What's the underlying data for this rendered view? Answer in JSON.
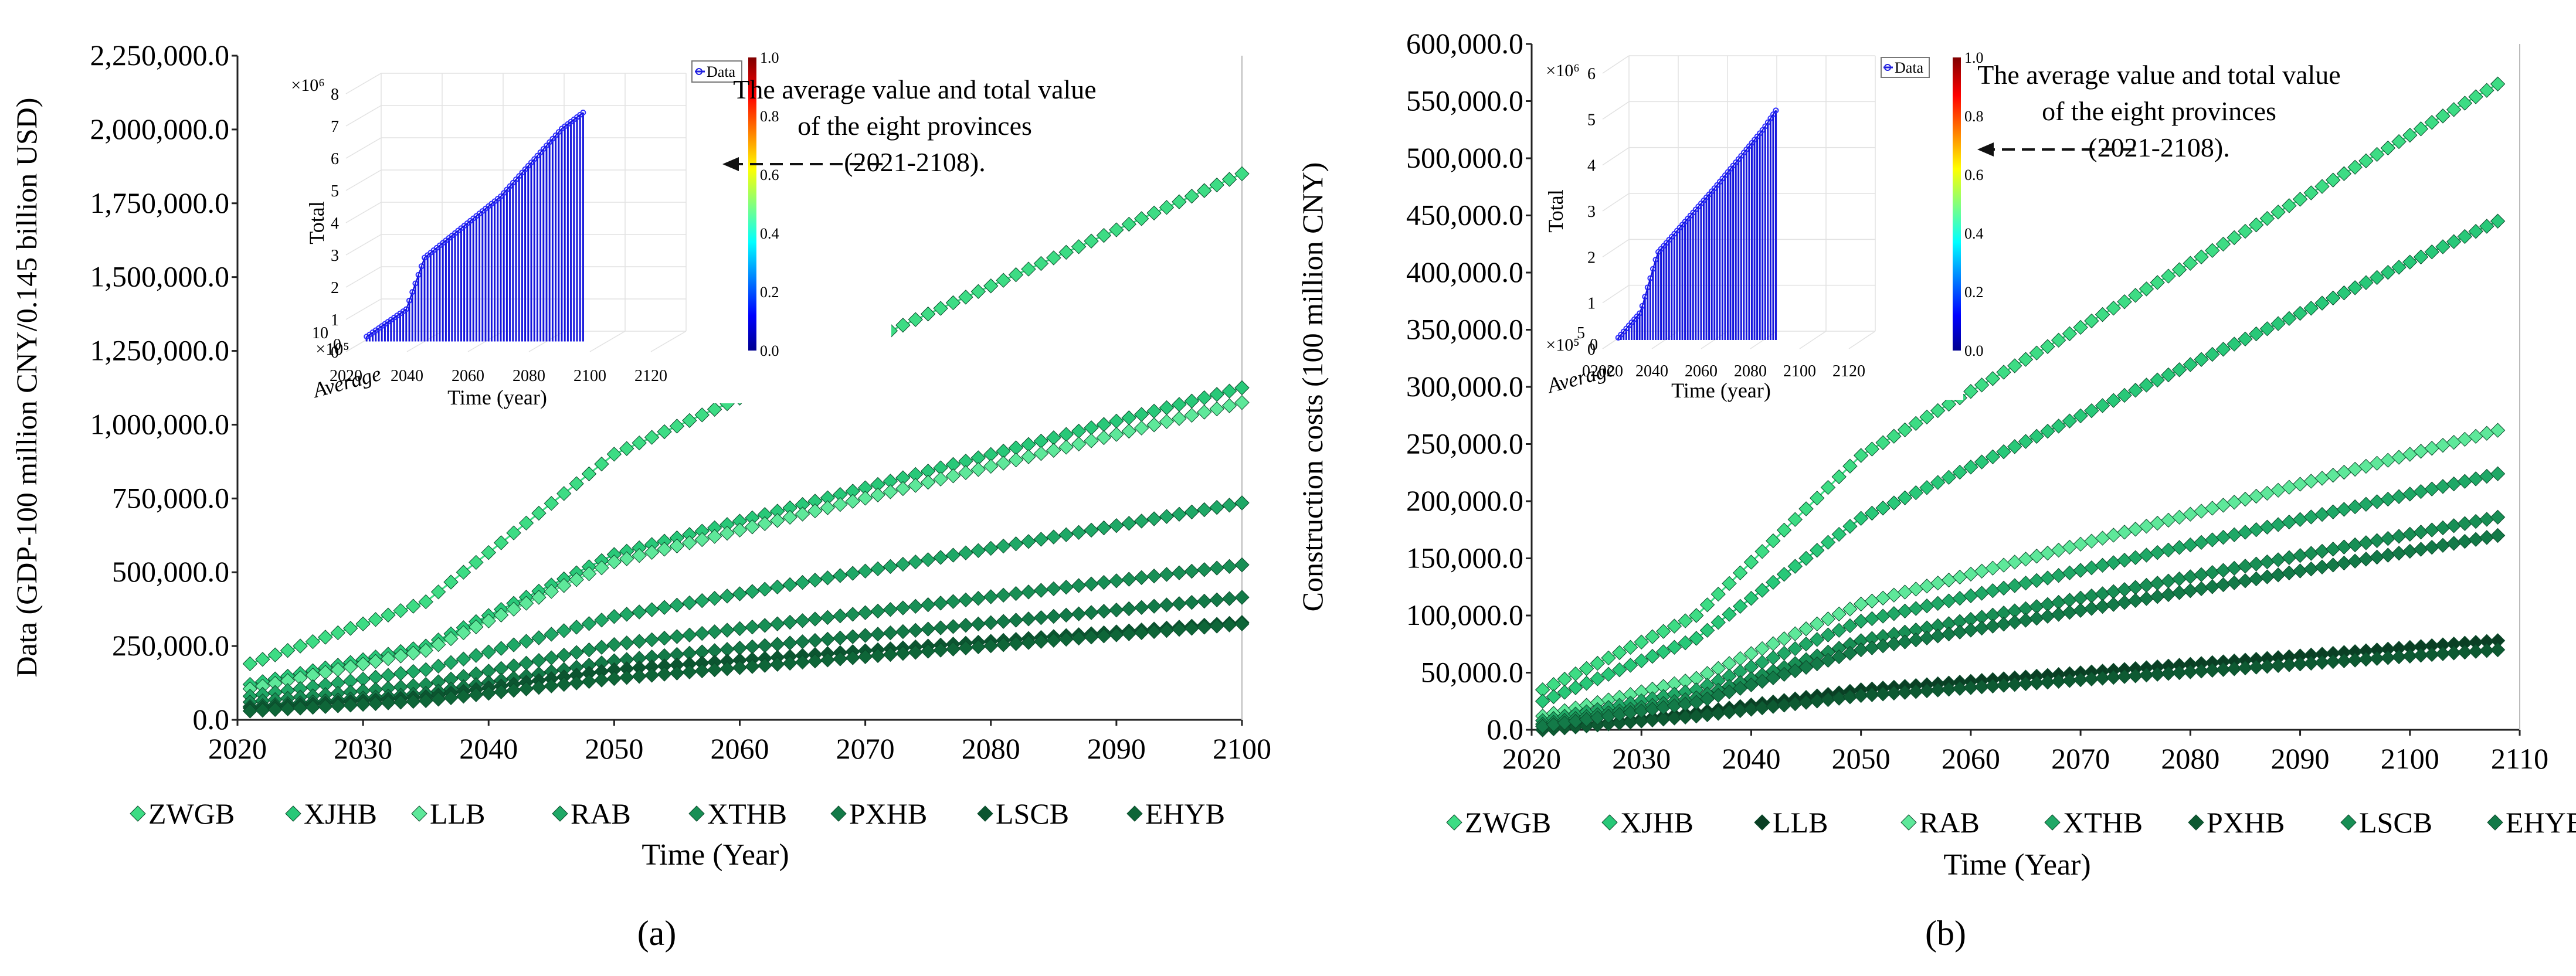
{
  "chart_data": [
    {
      "type": "line",
      "panel_label": "(a)",
      "ylabel": "Data (GDP-100 million CNY/0.145 billion USD)",
      "xlabel": "Time (Year)",
      "xlim": [
        2020,
        2100
      ],
      "ylim": [
        0,
        2250000
      ],
      "x_ticks": [
        "2020",
        "2030",
        "2040",
        "2050",
        "2060",
        "2070",
        "2080",
        "2090",
        "2100"
      ],
      "y_ticks": [
        "0.0",
        "250,000.0",
        "500,000.0",
        "750,000.0",
        "1,000,000.0",
        "1,250,000.0",
        "1,500,000.0",
        "1,750,000.0",
        "2,000,000.0",
        "2,250,000.0"
      ],
      "x_knots": [
        2021,
        2035,
        2050,
        2100
      ],
      "series": [
        {
          "name": "ZWGB",
          "color": "#3ddc84",
          "values": [
            190000,
            400000,
            900000,
            1850000
          ]
        },
        {
          "name": "XJHB",
          "color": "#28c878",
          "values": [
            120000,
            250000,
            560000,
            1125000
          ]
        },
        {
          "name": "LLB",
          "color": "#5ee89a",
          "values": [
            105000,
            235000,
            535000,
            1075000
          ]
        },
        {
          "name": "RAB",
          "color": "#1fa866",
          "values": [
            80000,
            170000,
            350000,
            735000
          ]
        },
        {
          "name": "XTHB",
          "color": "#188f55",
          "values": [
            60000,
            120000,
            255000,
            525000
          ]
        },
        {
          "name": "PXHB",
          "color": "#137a48",
          "values": [
            45000,
            90000,
            200000,
            415000
          ]
        },
        {
          "name": "LSCB",
          "color": "#0b5530",
          "values": [
            40000,
            78000,
            170000,
            330000
          ]
        },
        {
          "name": "EHYB",
          "color": "#0e6638",
          "values": [
            30000,
            65000,
            140000,
            325000
          ]
        }
      ],
      "legend": [
        "ZWGB",
        "XJHB",
        "LLB",
        "RAB",
        "XTHB",
        "PXHB",
        "LSCB",
        "EHYB"
      ],
      "inset": {
        "legend_label": "Data",
        "ylabel": "Total",
        "xlabel": "Time (year)",
        "depth_label": "Average",
        "y_exponent": "×10⁶",
        "depth_exponent": "×10⁵",
        "y_ticks": [
          "0",
          "1",
          "2",
          "3",
          "4",
          "5",
          "6",
          "7",
          "8"
        ],
        "x_ticks": [
          "2020",
          "2040",
          "2060",
          "2080",
          "2100",
          "2120"
        ],
        "depth_ticks": [
          "10",
          "0"
        ],
        "colorbar_ticks": [
          "0.0",
          "0.2",
          "0.4",
          "0.6",
          "0.8",
          "1.0"
        ],
        "xlim": [
          2020,
          2120
        ],
        "ylim": [
          0,
          8
        ],
        "x_knots": [
          2021,
          2034,
          2040,
          2065,
          2085,
          2092
        ],
        "y_knots": [
          0.15,
          1.0,
          2.6,
          4.5,
          6.6,
          7.1
        ]
      },
      "annotation": [
        "The average value and total value",
        "of the eight provinces",
        "(2021-2108)."
      ]
    },
    {
      "type": "line",
      "panel_label": "(b)",
      "ylabel": "Construction costs (100 million CNY)",
      "xlabel": "Time (Year)",
      "xlim": [
        2020,
        2110
      ],
      "ylim": [
        0,
        600000
      ],
      "x_ticks": [
        "2020",
        "2030",
        "2040",
        "2050",
        "2060",
        "2070",
        "2080",
        "2090",
        "2100",
        "2110"
      ],
      "y_ticks": [
        "0.0",
        "50,000.0",
        "100,000.0",
        "150,000.0",
        "200,000.0",
        "250,000.0",
        "300,000.0",
        "350,000.0",
        "400,000.0",
        "450,000.0",
        "500,000.0",
        "550,000.0",
        "600,000.0"
      ],
      "x_knots": [
        2021,
        2035,
        2050,
        2108
      ],
      "series": [
        {
          "name": "ZWGB",
          "color": "#3ddc84",
          "values": [
            35000,
            100000,
            240000,
            565000
          ]
        },
        {
          "name": "XJHB",
          "color": "#28c878",
          "values": [
            25000,
            80000,
            185000,
            445000
          ]
        },
        {
          "name": "LLB",
          "color": "#0a3f24",
          "values": [
            0,
            15000,
            35000,
            78000
          ]
        },
        {
          "name": "RAB",
          "color": "#5ee89a",
          "values": [
            12000,
            45000,
            110000,
            262000
          ]
        },
        {
          "name": "XTHB",
          "color": "#1fa866",
          "values": [
            8000,
            35000,
            95000,
            224000
          ]
        },
        {
          "name": "PXHB",
          "color": "#0d5a32",
          "values": [
            0,
            12000,
            30000,
            70000
          ]
        },
        {
          "name": "LSCB",
          "color": "#188f55",
          "values": [
            5000,
            28000,
            78000,
            186000
          ]
        },
        {
          "name": "EHYB",
          "color": "#137a48",
          "values": [
            3000,
            24000,
            70000,
            170000
          ]
        }
      ],
      "legend": [
        "ZWGB",
        "XJHB",
        "LLB",
        "RAB",
        "XTHB",
        "PXHB",
        "LSCB",
        "EHYB"
      ],
      "inset": {
        "legend_label": "Data",
        "ylabel": "Total",
        "xlabel": "Time (year)",
        "depth_label": "Average",
        "y_exponent": "×10⁶",
        "depth_exponent": "×10⁵",
        "y_ticks": [
          "0",
          "1",
          "2",
          "3",
          "4",
          "5",
          "6"
        ],
        "x_ticks": [
          "02020",
          "2040",
          "2060",
          "2080",
          "2100",
          "2120"
        ],
        "depth_ticks": [
          "5",
          "0"
        ],
        "colorbar_ticks": [
          "0.0",
          "0.2",
          "0.4",
          "0.6",
          "0.8",
          "1.0"
        ],
        "xlim": [
          2020,
          2120
        ],
        "ylim": [
          0,
          6
        ],
        "x_knots": [
          2021,
          2030,
          2037,
          2060,
          2080,
          2085
        ],
        "y_knots": [
          0.05,
          0.6,
          1.9,
          3.3,
          4.6,
          5.0
        ]
      },
      "annotation": [
        "The average value and total value",
        "of the eight provinces",
        "(2021-2108)."
      ]
    }
  ]
}
